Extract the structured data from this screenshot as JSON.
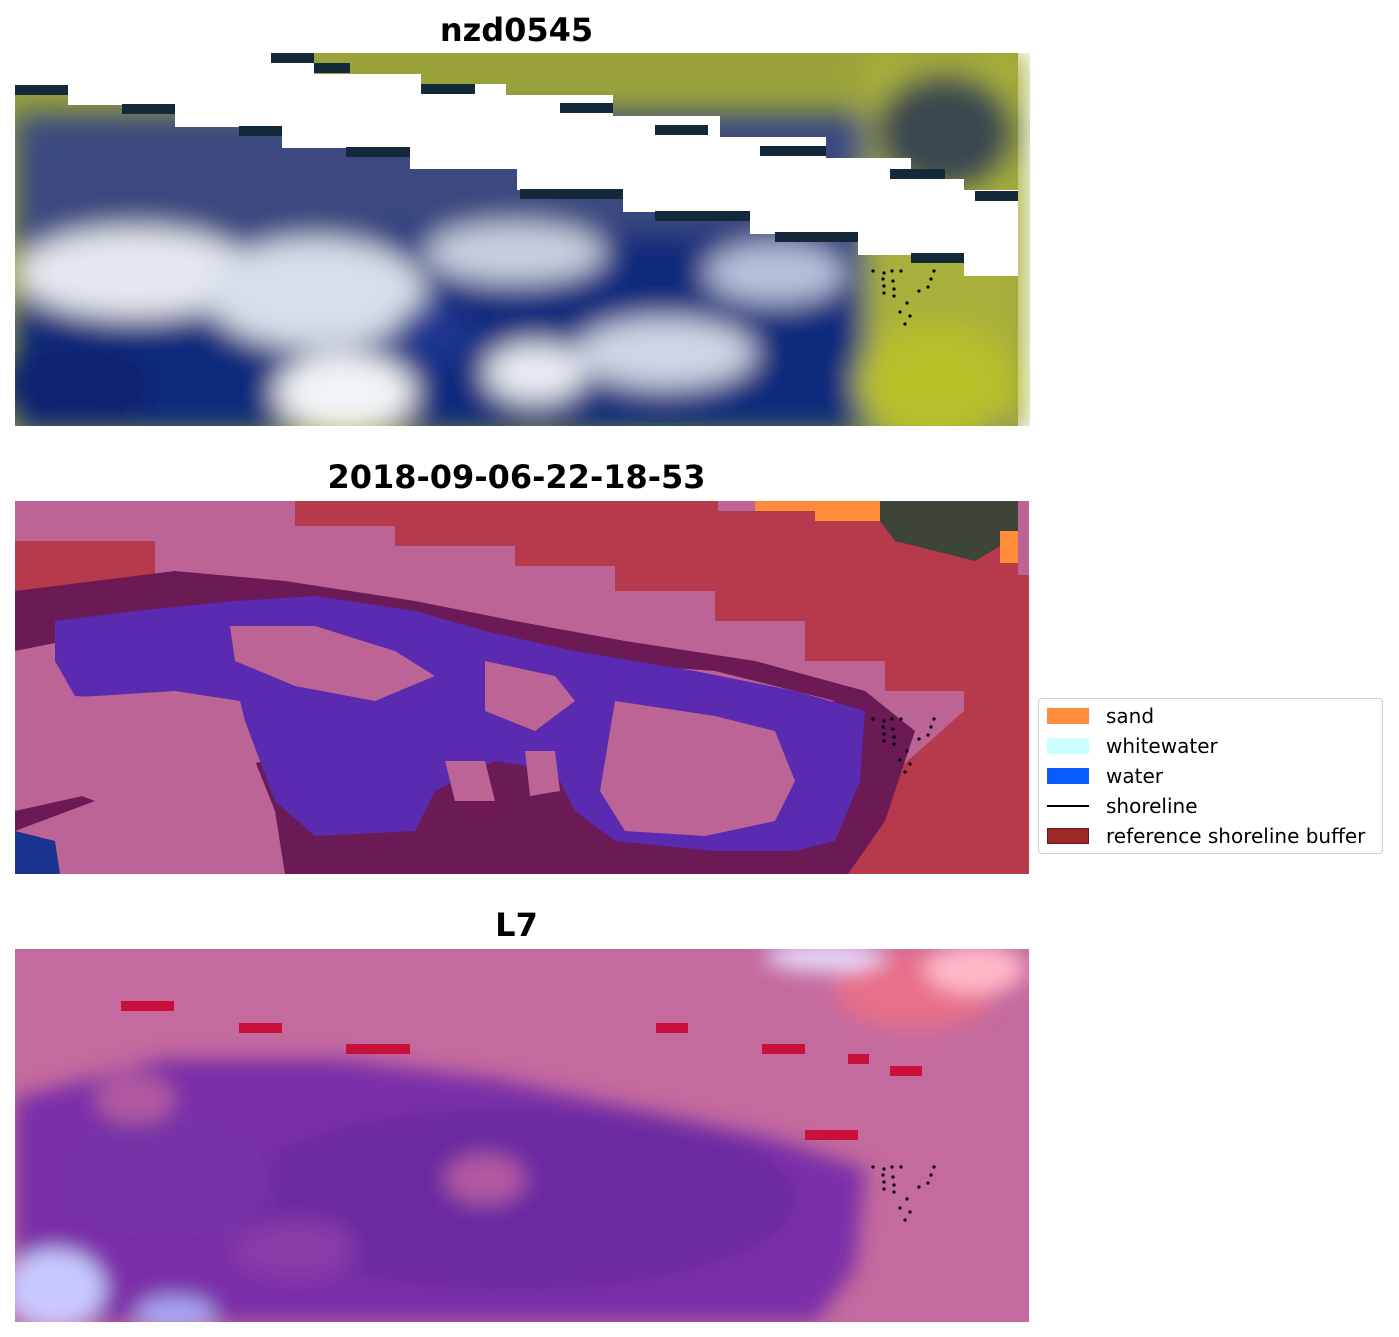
{
  "panels": [
    {
      "title": "nzd0545"
    },
    {
      "title": "2018-09-06-22-18-53"
    },
    {
      "title": "L7"
    }
  ],
  "legend": {
    "items": [
      {
        "label": "sand",
        "color": "#ff8c3a",
        "kind": "patch"
      },
      {
        "label": "whitewater",
        "color": "#c9ffff",
        "kind": "patch"
      },
      {
        "label": "water",
        "color": "#0a5cff",
        "kind": "patch"
      },
      {
        "label": "shoreline",
        "color": "#000000",
        "kind": "line"
      },
      {
        "label": "reference shoreline buffer",
        "color": "#9e2a2a",
        "kind": "patch"
      }
    ]
  },
  "colors": {
    "vegetation": "#a4ab3a",
    "deep_water": "#0c2a7a",
    "cloud": "#d6dde8",
    "buffer_pink": "#bb6495",
    "buffer_red": "#b63a4c",
    "classified_water": "#5a2ab0",
    "dark_maroon": "#6b1a55",
    "index_purple": "#7a2fa8",
    "index_pink": "#c46a9e"
  }
}
